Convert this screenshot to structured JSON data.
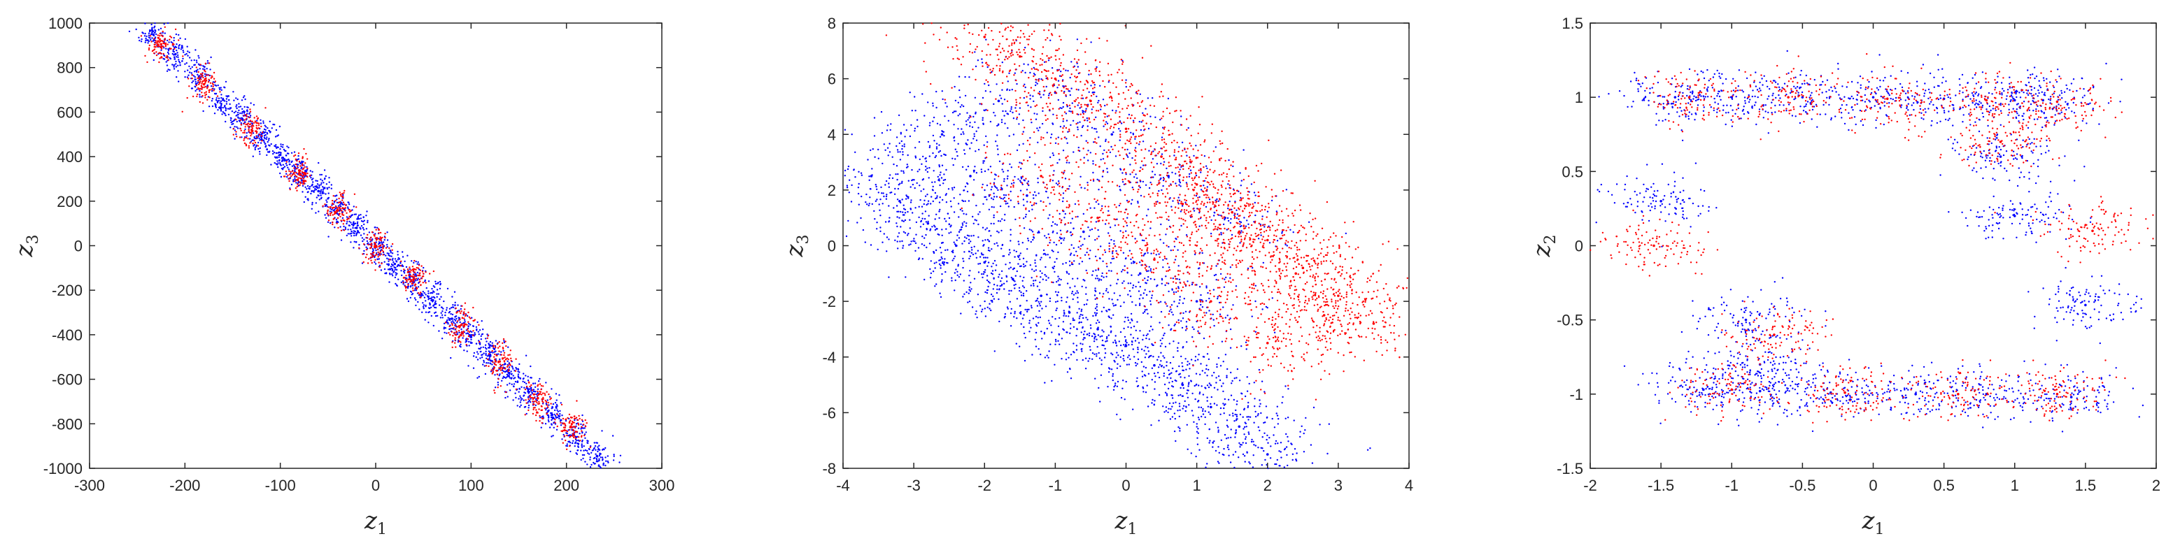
{
  "chart_data": [
    {
      "type": "scatter",
      "title": "",
      "xlabel": "z",
      "xlabel_sub": "1",
      "ylabel": "z",
      "ylabel_sub": "3",
      "xlim": [
        -300,
        300
      ],
      "ylim": [
        -1000,
        1000
      ],
      "xticks": [
        -300,
        -200,
        -100,
        0,
        100,
        200,
        300
      ],
      "yticks": [
        -1000,
        -800,
        -600,
        -400,
        -200,
        0,
        200,
        400,
        600,
        800,
        1000
      ],
      "grid": false,
      "series": [
        {
          "color": "#0000ff",
          "x": [
            -233,
            -210,
            -185,
            -160,
            -140,
            -120,
            -100,
            -80,
            -60,
            -40,
            -20,
            0,
            20,
            40,
            60,
            80,
            100,
            120,
            140,
            160,
            185,
            210,
            232
          ],
          "y": [
            948,
            860,
            760,
            655,
            570,
            490,
            408,
            325,
            245,
            160,
            80,
            0,
            -82,
            -162,
            -245,
            -328,
            -410,
            -492,
            -572,
            -655,
            -760,
            -860,
            -945
          ]
        },
        {
          "color": "#ff0000",
          "x": [
            -225,
            -180,
            -130,
            -80,
            -40,
            0,
            40,
            90,
            130,
            170,
            205
          ],
          "y": [
            905,
            725,
            520,
            320,
            160,
            -5,
            -150,
            -355,
            -520,
            -685,
            -815
          ]
        }
      ]
    },
    {
      "type": "scatter",
      "title": "",
      "xlabel": "z",
      "xlabel_sub": "1",
      "ylabel": "z",
      "ylabel_sub": "3",
      "xlim": [
        -4,
        4
      ],
      "ylim": [
        -8,
        8
      ],
      "xticks": [
        -4,
        -3,
        -2,
        -1,
        0,
        1,
        2,
        3,
        4
      ],
      "yticks": [
        -8,
        -6,
        -4,
        -2,
        0,
        2,
        4,
        6,
        8
      ],
      "grid": false,
      "series": [
        {
          "color": "#0000ff",
          "x": [
            -3.6,
            -3.2,
            -2.8,
            -2.4,
            -2.0,
            -1.6,
            -1.2,
            -0.8,
            -0.4,
            0.0,
            0.4,
            0.8,
            1.2,
            1.6,
            2.0,
            -2.6,
            -1.8,
            -1.0,
            -0.2,
            0.6,
            1.4,
            -2.2,
            -1.4,
            -0.6,
            0.2,
            1.0
          ],
          "y": [
            2.5,
            1.6,
            0.8,
            0.0,
            -0.6,
            -1.2,
            -1.8,
            -2.4,
            -3.0,
            -3.6,
            -4.3,
            -5.0,
            -5.8,
            -6.5,
            -7.5,
            4.0,
            5.2,
            5.5,
            4.0,
            2.5,
            1.0,
            2.5,
            1.8,
            0.5,
            -1.0,
            -2.0
          ]
        },
        {
          "color": "#ff0000",
          "x": [
            -2.0,
            -1.5,
            -1.0,
            -0.5,
            0.0,
            0.5,
            1.0,
            1.5,
            2.0,
            2.5,
            3.0,
            3.5,
            -1.2,
            -0.4,
            0.4,
            1.2,
            2.0,
            2.8,
            0.8,
            1.6,
            2.4
          ],
          "y": [
            7.5,
            6.8,
            6.0,
            5.2,
            4.2,
            3.2,
            2.2,
            1.2,
            0.2,
            -0.8,
            -1.8,
            -2.8,
            2.5,
            1.0,
            -0.5,
            -2.0,
            -3.5,
            -2.5,
            1.5,
            0.5,
            -1.0
          ]
        }
      ]
    },
    {
      "type": "scatter",
      "title": "",
      "xlabel": "z",
      "xlabel_sub": "1",
      "ylabel": "z",
      "ylabel_sub": "2",
      "xlim": [
        -2,
        2
      ],
      "ylim": [
        -1.5,
        1.5
      ],
      "xticks": [
        -2,
        -1.5,
        -1,
        -0.5,
        0,
        0.5,
        1,
        1.5,
        2
      ],
      "yticks": [
        -1.5,
        -1,
        -0.5,
        0,
        0.5,
        1,
        1.5
      ],
      "grid": false,
      "series": [
        {
          "color": "#0000ff",
          "x": [
            -1.4,
            -1.0,
            -0.5,
            0.0,
            0.5,
            1.0,
            1.2,
            -1.2,
            -0.8,
            -0.3,
            0.3,
            0.8,
            1.4,
            -1.5,
            1.5,
            -0.9,
            -0.8,
            0.9,
            1.0
          ],
          "y": [
            1.0,
            1.0,
            1.0,
            1.0,
            0.99,
            0.98,
            0.98,
            -0.97,
            -0.98,
            -0.99,
            -1.0,
            -1.0,
            -1.02,
            0.3,
            -0.4,
            -0.5,
            -0.8,
            0.6,
            0.2
          ]
        },
        {
          "color": "#ff0000",
          "x": [
            -1.3,
            -0.6,
            0.1,
            0.8,
            1.3,
            -1.0,
            -0.2,
            0.6,
            1.3,
            -1.55,
            1.55,
            0.9,
            -0.7
          ],
          "y": [
            1.0,
            1.0,
            0.99,
            0.98,
            0.97,
            -0.97,
            -0.99,
            -1.0,
            -1.0,
            0.0,
            0.1,
            0.7,
            -0.6
          ]
        }
      ]
    }
  ]
}
